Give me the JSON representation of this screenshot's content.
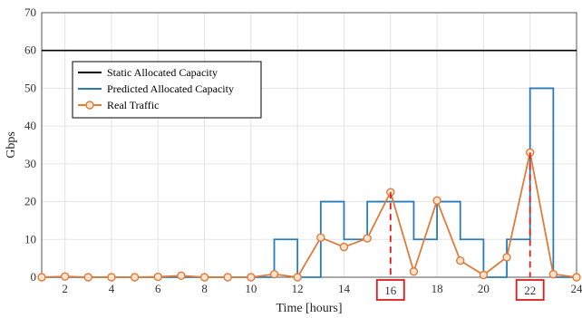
{
  "chart_data": {
    "type": "line",
    "xlabel": "Time [hours]",
    "ylabel": "Gbps",
    "xlim": [
      1,
      24
    ],
    "ylim": [
      0,
      70
    ],
    "xticks": [
      2,
      4,
      6,
      8,
      10,
      12,
      14,
      16,
      18,
      20,
      22,
      24
    ],
    "yticks": [
      0,
      10,
      20,
      30,
      40,
      50,
      60,
      70
    ],
    "grid": true,
    "legend_position": "upper-left",
    "highlighted_x": [
      16,
      22
    ],
    "series": [
      {
        "name": "Static Allocated Capacity",
        "style": "line",
        "color": "#000000",
        "x": [
          1,
          24
        ],
        "y": [
          60,
          60
        ]
      },
      {
        "name": "Predicted Allocated Capacity",
        "style": "step",
        "color": "#2b7bba",
        "x": [
          1,
          2,
          3,
          4,
          5,
          6,
          7,
          8,
          9,
          10,
          11,
          12,
          13,
          14,
          15,
          16,
          17,
          18,
          19,
          20,
          21,
          22,
          23,
          24
        ],
        "y": [
          0,
          0,
          0,
          0,
          0,
          0,
          0,
          0,
          0,
          0,
          10,
          0,
          20,
          10,
          20,
          20,
          10,
          20,
          10,
          0,
          10,
          50,
          0,
          0
        ]
      },
      {
        "name": "Real Traffic",
        "style": "line-marker",
        "color": "#e07b39",
        "x": [
          1,
          2,
          3,
          4,
          5,
          6,
          7,
          8,
          9,
          10,
          11,
          12,
          13,
          14,
          15,
          16,
          17,
          18,
          19,
          20,
          21,
          22,
          23,
          24
        ],
        "y": [
          0,
          0.2,
          0,
          0,
          0,
          0.1,
          0.4,
          0,
          0,
          0,
          0.8,
          0,
          10.5,
          8,
          10.3,
          22.5,
          1.5,
          20.3,
          4.4,
          0.6,
          5.3,
          33,
          0.8,
          0
        ]
      }
    ]
  }
}
